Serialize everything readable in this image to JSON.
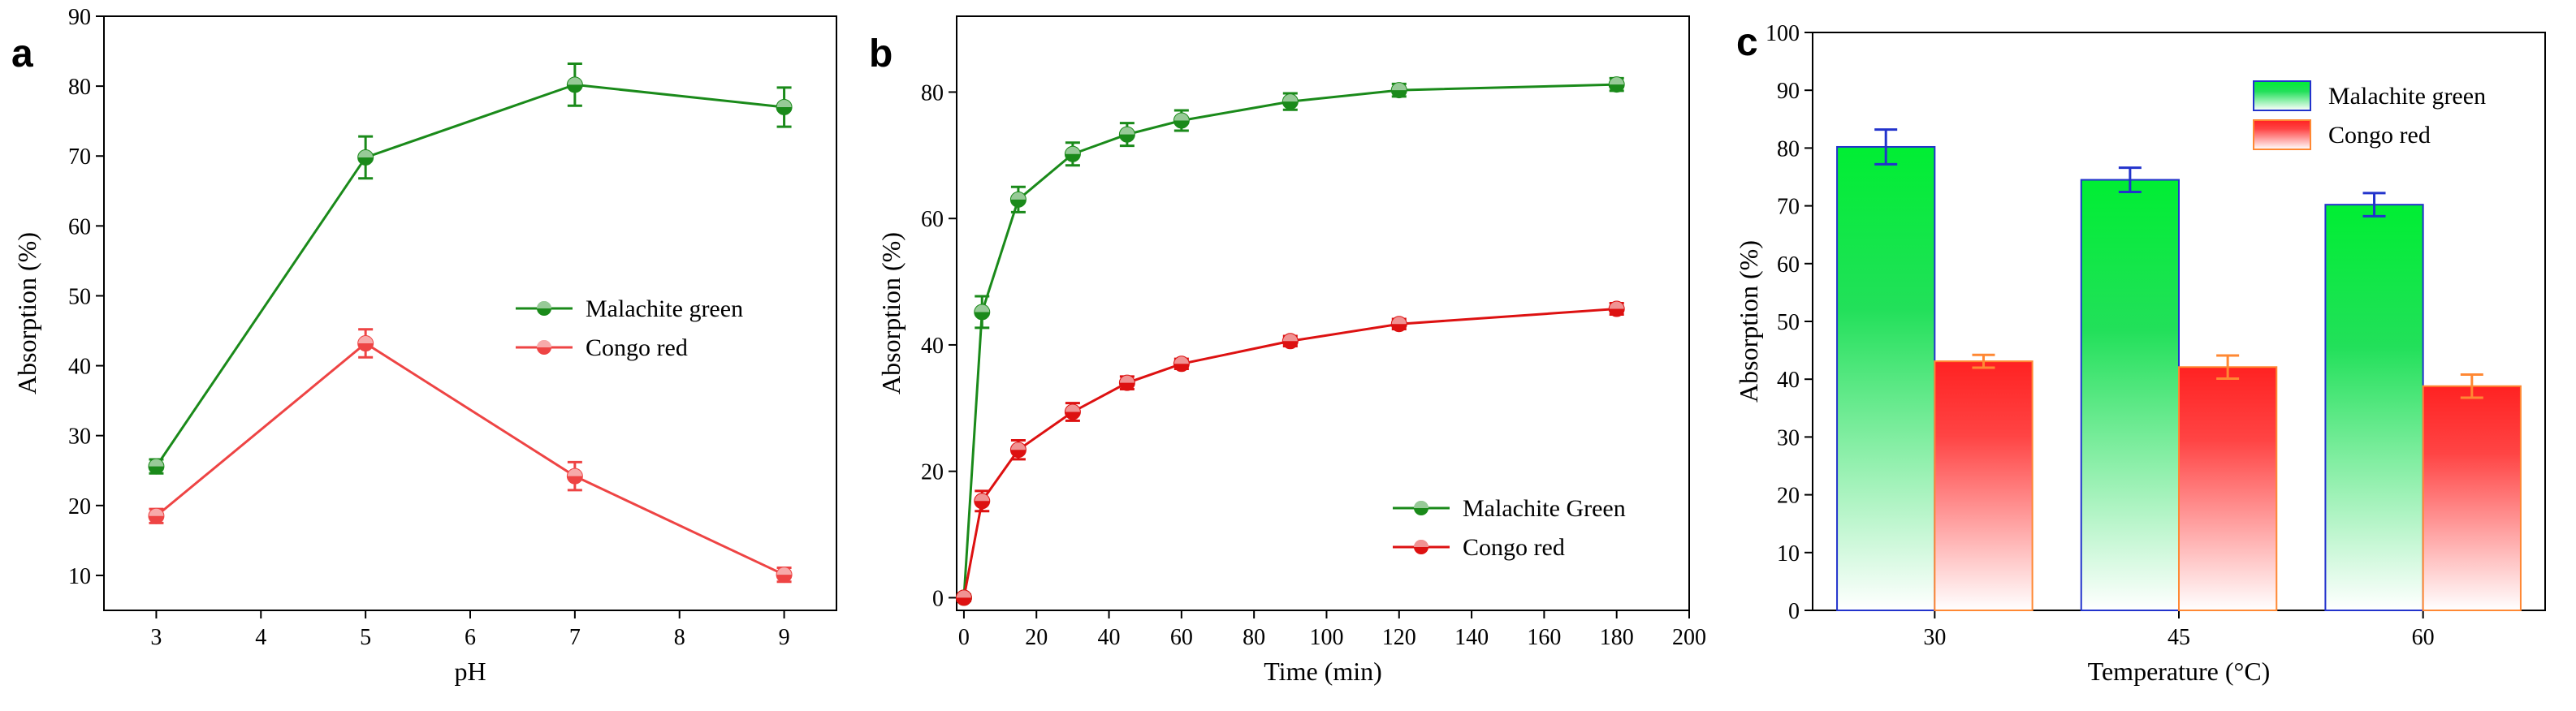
{
  "chart_data": [
    {
      "type": "line",
      "panel": "a",
      "xlabel": "pH",
      "ylabel": "Absorption (%)",
      "xlim": [
        2.5,
        9.5
      ],
      "ylim": [
        5,
        90
      ],
      "xticks": [
        3,
        4,
        5,
        6,
        7,
        8,
        9
      ],
      "yticks": [
        10,
        20,
        30,
        40,
        50,
        60,
        70,
        80,
        90
      ],
      "legend": "center-right",
      "series": [
        {
          "name": "Malachite green",
          "color": "#1a8a1a",
          "x": [
            3,
            5,
            7,
            9
          ],
          "values": [
            25.6,
            69.8,
            80.2,
            77.0
          ],
          "errors": [
            1.0,
            3.0,
            3.0,
            2.8
          ]
        },
        {
          "name": "Congo red",
          "color": "#ee4444",
          "x": [
            3,
            5,
            7,
            9
          ],
          "values": [
            18.5,
            43.2,
            24.2,
            10.1
          ],
          "errors": [
            1.0,
            2.0,
            2.0,
            1.0
          ]
        }
      ]
    },
    {
      "type": "line",
      "panel": "b",
      "xlabel": "Time (min)",
      "ylabel": "Absorption (%)",
      "xlim": [
        -2,
        200
      ],
      "ylim": [
        -2,
        92
      ],
      "xticks": [
        0,
        20,
        40,
        60,
        80,
        100,
        120,
        140,
        160,
        180,
        200
      ],
      "yticks": [
        0,
        20,
        40,
        60,
        80
      ],
      "legend": "bottom-right",
      "series": [
        {
          "name": "Malachite Green",
          "color": "#1a8a1a",
          "x": [
            0,
            5,
            15,
            30,
            45,
            60,
            90,
            120,
            180
          ],
          "values": [
            0,
            45.2,
            63.0,
            70.2,
            73.3,
            75.5,
            78.5,
            80.3,
            81.2
          ],
          "errors": [
            0.5,
            2.5,
            2.0,
            1.8,
            1.8,
            1.6,
            1.3,
            1.0,
            1.0
          ]
        },
        {
          "name": "Congo red",
          "color": "#dd1111",
          "x": [
            0,
            5,
            15,
            30,
            45,
            60,
            90,
            120,
            180
          ],
          "values": [
            0,
            15.3,
            23.4,
            29.4,
            34.0,
            37.0,
            40.6,
            43.3,
            45.7
          ],
          "errors": [
            0.5,
            1.6,
            1.5,
            1.4,
            1.0,
            0.8,
            0.8,
            0.8,
            0.9
          ]
        }
      ]
    },
    {
      "type": "bar",
      "panel": "c",
      "xlabel": "Temperature (°C)",
      "ylabel": "Absorption (%)",
      "categories": [
        "30",
        "45",
        "60"
      ],
      "ylim": [
        0,
        100
      ],
      "yticks": [
        0,
        10,
        20,
        30,
        40,
        50,
        60,
        70,
        80,
        90,
        100
      ],
      "legend": "top-right",
      "series": [
        {
          "name": "Malachite green",
          "fill": "#00ee33",
          "edge": "#2233cc",
          "values": [
            80.2,
            74.5,
            70.2
          ],
          "errors": [
            3.0,
            2.1,
            2.0
          ]
        },
        {
          "name": "Congo red",
          "fill": "#ff2222",
          "edge": "#ff8833",
          "values": [
            43.1,
            42.1,
            38.8
          ],
          "errors": [
            1.1,
            2.0,
            2.0
          ]
        }
      ]
    }
  ]
}
